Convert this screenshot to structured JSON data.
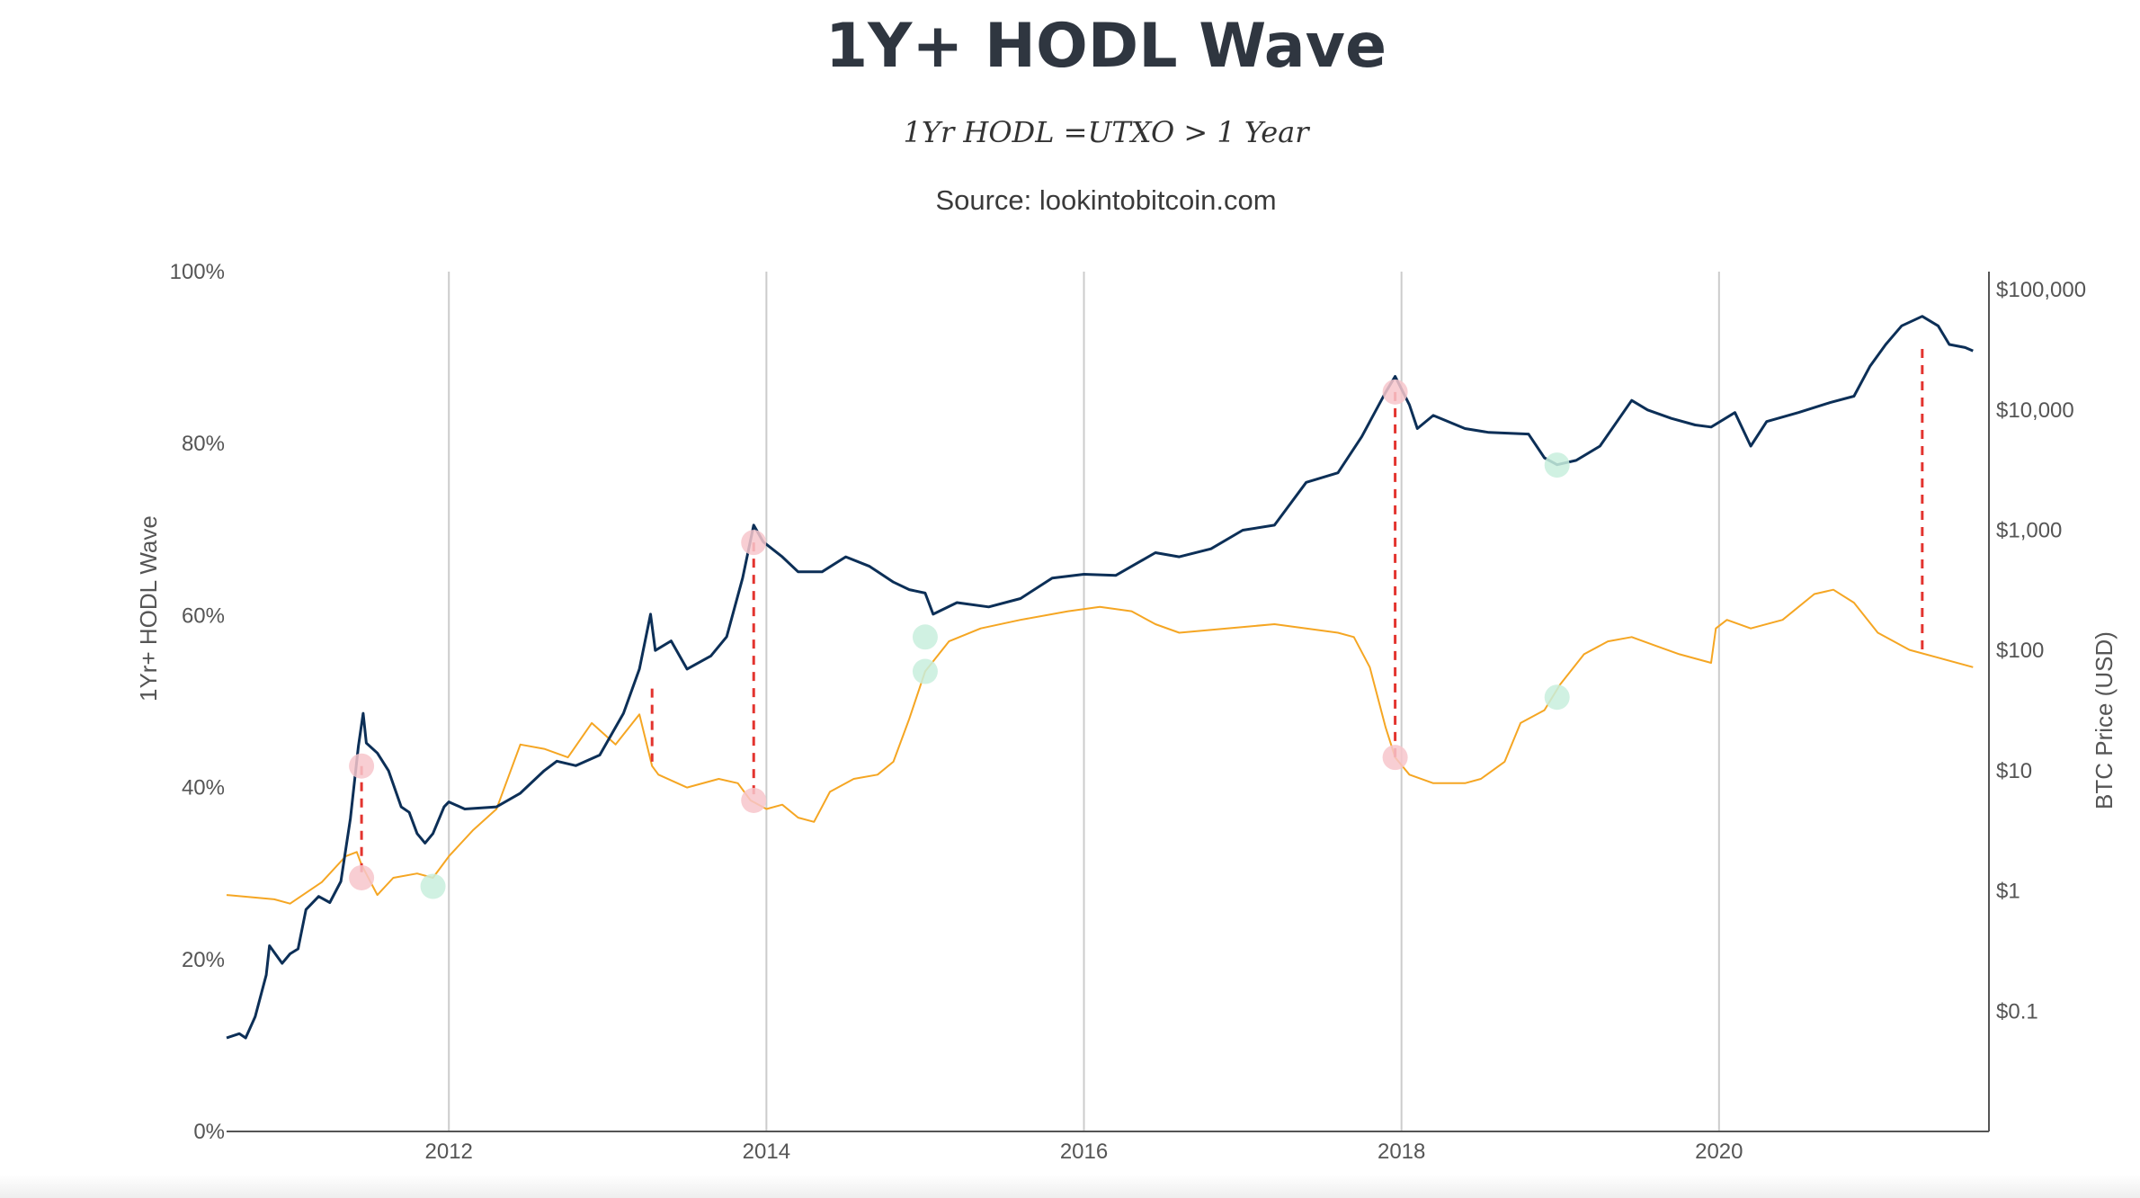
{
  "chart_data": {
    "type": "line",
    "title": "1Y+ HODL Wave",
    "subtitle": "1Yr HODL =UTXO > 1 Year",
    "source": "Source: lookintobitcoin.com",
    "xlabel": "",
    "ylabel_left": "1Yr+ HODL Wave",
    "ylabel_right": "BTC Price (USD)",
    "x_range": [
      2010.6,
      2021.7
    ],
    "x_ticks": [
      2012,
      2014,
      2016,
      2018,
      2020
    ],
    "x_tick_labels": [
      "2012",
      "2014",
      "2016",
      "2018",
      "2020"
    ],
    "y_left_range": [
      0,
      100
    ],
    "y_left_ticks": [
      0,
      20,
      40,
      60,
      80,
      100
    ],
    "y_left_tick_labels": [
      "0%",
      "20%",
      "40%",
      "60%",
      "80%",
      "100%"
    ],
    "y_right_log_range": [
      -2,
      5.15
    ],
    "y_right_ticks": [
      -1,
      0,
      1,
      2,
      3,
      4,
      5
    ],
    "y_right_tick_labels": [
      "$0.1",
      "$1",
      "$10",
      "$100",
      "$1,000",
      "$10,000",
      "$100,000"
    ],
    "series": [
      {
        "name": "1Yr+ HODL Wave",
        "color": "#f5a623",
        "axis": "left",
        "points": [
          [
            2010.6,
            27.5
          ],
          [
            2010.9,
            27.0
          ],
          [
            2011.0,
            26.5
          ],
          [
            2011.2,
            29.0
          ],
          [
            2011.35,
            32.0
          ],
          [
            2011.42,
            32.5
          ],
          [
            2011.45,
            31.0
          ],
          [
            2011.55,
            27.5
          ],
          [
            2011.65,
            29.5
          ],
          [
            2011.8,
            30.0
          ],
          [
            2011.9,
            29.5
          ],
          [
            2012.0,
            32.0
          ],
          [
            2012.15,
            35.0
          ],
          [
            2012.3,
            37.5
          ],
          [
            2012.45,
            45.0
          ],
          [
            2012.6,
            44.5
          ],
          [
            2012.75,
            43.5
          ],
          [
            2012.9,
            47.5
          ],
          [
            2013.05,
            45.0
          ],
          [
            2013.2,
            48.5
          ],
          [
            2013.28,
            42.5
          ],
          [
            2013.32,
            41.5
          ],
          [
            2013.5,
            40.0
          ],
          [
            2013.7,
            41.0
          ],
          [
            2013.82,
            40.5
          ],
          [
            2013.9,
            38.5
          ],
          [
            2014.0,
            37.5
          ],
          [
            2014.1,
            38.0
          ],
          [
            2014.2,
            36.5
          ],
          [
            2014.3,
            36.0
          ],
          [
            2014.4,
            39.5
          ],
          [
            2014.55,
            41.0
          ],
          [
            2014.7,
            41.5
          ],
          [
            2014.8,
            43.0
          ],
          [
            2014.9,
            48.0
          ],
          [
            2015.0,
            53.5
          ],
          [
            2015.15,
            57.0
          ],
          [
            2015.35,
            58.5
          ],
          [
            2015.6,
            59.5
          ],
          [
            2015.9,
            60.5
          ],
          [
            2016.1,
            61.0
          ],
          [
            2016.3,
            60.5
          ],
          [
            2016.45,
            59.0
          ],
          [
            2016.6,
            58.0
          ],
          [
            2016.9,
            58.5
          ],
          [
            2017.2,
            59.0
          ],
          [
            2017.4,
            58.5
          ],
          [
            2017.6,
            58.0
          ],
          [
            2017.7,
            57.5
          ],
          [
            2017.8,
            54.0
          ],
          [
            2017.9,
            47.0
          ],
          [
            2017.96,
            43.5
          ],
          [
            2018.05,
            41.5
          ],
          [
            2018.2,
            40.5
          ],
          [
            2018.4,
            40.5
          ],
          [
            2018.5,
            41.0
          ],
          [
            2018.65,
            43.0
          ],
          [
            2018.75,
            47.5
          ],
          [
            2018.9,
            49.0
          ],
          [
            2019.0,
            52.0
          ],
          [
            2019.15,
            55.5
          ],
          [
            2019.3,
            57.0
          ],
          [
            2019.45,
            57.5
          ],
          [
            2019.6,
            56.5
          ],
          [
            2019.75,
            55.5
          ],
          [
            2019.95,
            54.5
          ],
          [
            2019.98,
            58.5
          ],
          [
            2020.05,
            59.5
          ],
          [
            2020.2,
            58.5
          ],
          [
            2020.4,
            59.5
          ],
          [
            2020.6,
            62.5
          ],
          [
            2020.72,
            63.0
          ],
          [
            2020.85,
            61.5
          ],
          [
            2021.0,
            58.0
          ],
          [
            2021.2,
            56.0
          ],
          [
            2021.4,
            55.0
          ],
          [
            2021.6,
            54.0
          ]
        ]
      },
      {
        "name": "BTC Price",
        "color": "#0c2f57",
        "axis": "right",
        "points": [
          [
            2010.6,
            0.06
          ],
          [
            2010.68,
            0.065
          ],
          [
            2010.72,
            0.06
          ],
          [
            2010.78,
            0.09
          ],
          [
            2010.85,
            0.2
          ],
          [
            2010.87,
            0.35
          ],
          [
            2010.95,
            0.25
          ],
          [
            2011.0,
            0.3
          ],
          [
            2011.05,
            0.33
          ],
          [
            2011.1,
            0.7
          ],
          [
            2011.18,
            0.9
          ],
          [
            2011.25,
            0.8
          ],
          [
            2011.32,
            1.2
          ],
          [
            2011.38,
            4.0
          ],
          [
            2011.43,
            16.0
          ],
          [
            2011.46,
            30.0
          ],
          [
            2011.48,
            17.0
          ],
          [
            2011.55,
            14.0
          ],
          [
            2011.62,
            10.0
          ],
          [
            2011.7,
            5.0
          ],
          [
            2011.75,
            4.5
          ],
          [
            2011.8,
            3.0
          ],
          [
            2011.85,
            2.5
          ],
          [
            2011.9,
            3.0
          ],
          [
            2011.97,
            5.0
          ],
          [
            2012.0,
            5.5
          ],
          [
            2012.1,
            4.8
          ],
          [
            2012.3,
            5.0
          ],
          [
            2012.45,
            6.5
          ],
          [
            2012.6,
            10.0
          ],
          [
            2012.68,
            12.0
          ],
          [
            2012.8,
            11.0
          ],
          [
            2012.95,
            13.5
          ],
          [
            2013.1,
            30.0
          ],
          [
            2013.2,
            70.0
          ],
          [
            2013.27,
            200.0
          ],
          [
            2013.3,
            100.0
          ],
          [
            2013.4,
            120.0
          ],
          [
            2013.5,
            70.0
          ],
          [
            2013.65,
            90.0
          ],
          [
            2013.75,
            130.0
          ],
          [
            2013.85,
            400.0
          ],
          [
            2013.92,
            1100.0
          ],
          [
            2013.98,
            800.0
          ],
          [
            2014.1,
            600.0
          ],
          [
            2014.2,
            450.0
          ],
          [
            2014.35,
            450.0
          ],
          [
            2014.5,
            600.0
          ],
          [
            2014.65,
            500.0
          ],
          [
            2014.8,
            370.0
          ],
          [
            2014.9,
            320.0
          ],
          [
            2015.0,
            300.0
          ],
          [
            2015.05,
            200.0
          ],
          [
            2015.2,
            250.0
          ],
          [
            2015.4,
            230.0
          ],
          [
            2015.6,
            270.0
          ],
          [
            2015.8,
            400.0
          ],
          [
            2016.0,
            430.0
          ],
          [
            2016.2,
            420.0
          ],
          [
            2016.45,
            650.0
          ],
          [
            2016.6,
            600.0
          ],
          [
            2016.8,
            700.0
          ],
          [
            2017.0,
            1000.0
          ],
          [
            2017.2,
            1100.0
          ],
          [
            2017.4,
            2500.0
          ],
          [
            2017.6,
            3000.0
          ],
          [
            2017.75,
            6000.0
          ],
          [
            2017.9,
            14000.0
          ],
          [
            2017.96,
            19000.0
          ],
          [
            2018.05,
            11000.0
          ],
          [
            2018.1,
            7000.0
          ],
          [
            2018.2,
            9000.0
          ],
          [
            2018.4,
            7000.0
          ],
          [
            2018.55,
            6500.0
          ],
          [
            2018.8,
            6300.0
          ],
          [
            2018.9,
            4000.0
          ],
          [
            2018.98,
            3500.0
          ],
          [
            2019.1,
            3800.0
          ],
          [
            2019.25,
            5000.0
          ],
          [
            2019.45,
            12000.0
          ],
          [
            2019.55,
            10000.0
          ],
          [
            2019.7,
            8500.0
          ],
          [
            2019.85,
            7500.0
          ],
          [
            2019.95,
            7200.0
          ],
          [
            2020.1,
            9500.0
          ],
          [
            2020.2,
            5000.0
          ],
          [
            2020.3,
            8000.0
          ],
          [
            2020.5,
            9500.0
          ],
          [
            2020.7,
            11500.0
          ],
          [
            2020.85,
            13000.0
          ],
          [
            2020.95,
            23000.0
          ],
          [
            2021.05,
            35000.0
          ],
          [
            2021.15,
            50000.0
          ],
          [
            2021.28,
            60000.0
          ],
          [
            2021.38,
            50000.0
          ],
          [
            2021.45,
            35000.0
          ],
          [
            2021.55,
            33000.0
          ],
          [
            2021.6,
            31000.0
          ]
        ]
      },
      {
        "name": "Cycle markers",
        "type": "dashed-vertical",
        "color": "#e3342f",
        "points": [
          [
            2011.45,
            42.5,
            29.5
          ],
          [
            2013.28,
            51.5,
            43.0
          ],
          [
            2013.92,
            68.5,
            38.5
          ],
          [
            2017.96,
            86.0,
            43.5
          ],
          [
            2021.28,
            91.0,
            55.5
          ]
        ]
      }
    ],
    "annotations": {
      "top_marker_color": "#f7c5cb",
      "bottom_marker_color": "#c8eedd",
      "top_markers": [
        [
          2011.45,
          42.5
        ],
        [
          2011.45,
          29.5
        ],
        [
          2013.92,
          68.5
        ],
        [
          2013.92,
          38.5
        ],
        [
          2017.96,
          86.0
        ],
        [
          2017.96,
          43.5
        ]
      ],
      "bottom_markers": [
        [
          2011.9,
          28.5
        ],
        [
          2015.0,
          57.5
        ],
        [
          2015.0,
          53.5
        ],
        [
          2018.98,
          77.5
        ],
        [
          2018.98,
          50.5
        ]
      ]
    },
    "grid": "vertical"
  }
}
